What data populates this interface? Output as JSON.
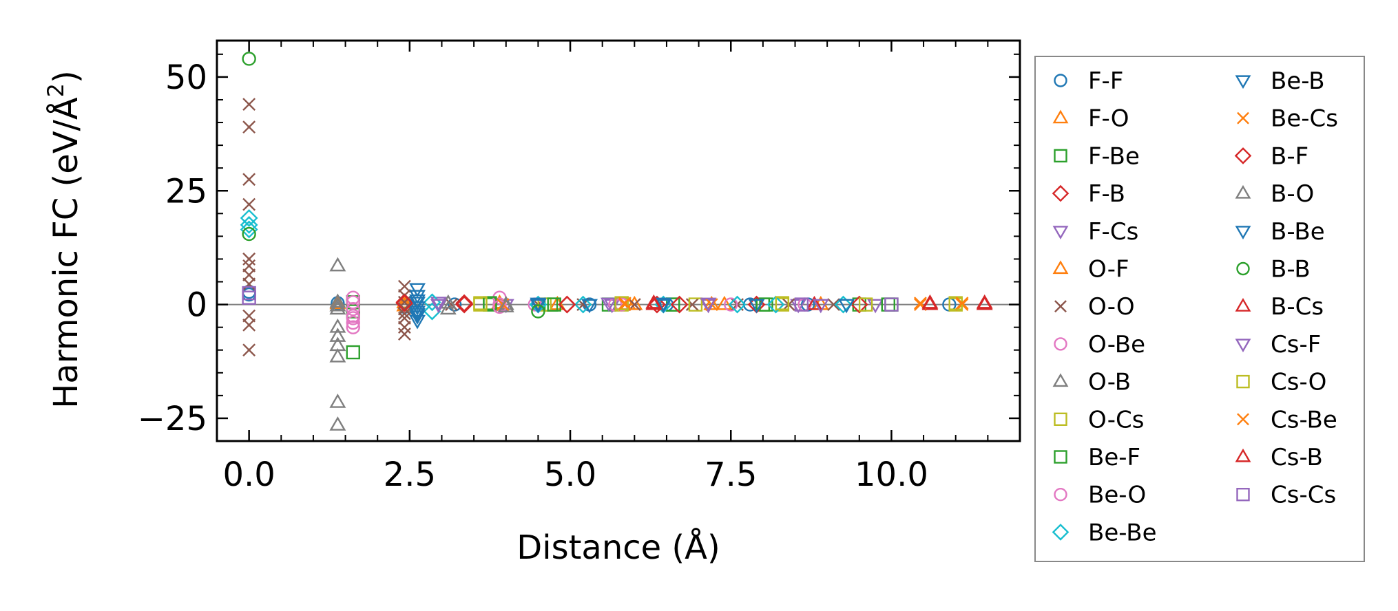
{
  "chart_data": {
    "type": "scatter",
    "xlabel": "Distance (Å)",
    "ylabel_prefix": "Harmonic FC (eV/Å",
    "ylabel_sup": "2",
    "ylabel_suffix": ")",
    "xlim": [
      -0.5,
      12.0
    ],
    "ylim": [
      -30,
      58
    ],
    "xticks": [
      0.0,
      2.5,
      5.0,
      7.5,
      10.0
    ],
    "xtick_labels": [
      "0.0",
      "2.5",
      "5.0",
      "7.5",
      "10.0"
    ],
    "yticks": [
      -25,
      0,
      25,
      50
    ],
    "ytick_labels": [
      "−25",
      "0",
      "25",
      "50"
    ],
    "zero_line": true,
    "grid": false,
    "legend_position": "outside-right",
    "series": [
      {
        "name": "F-F",
        "marker": "circle",
        "color": "#1f77b4",
        "points": [
          [
            0,
            2.8
          ],
          [
            0,
            2.2
          ],
          [
            1.38,
            0.3
          ],
          [
            2.42,
            -0.5
          ],
          [
            3.2,
            0
          ],
          [
            4.5,
            0
          ],
          [
            5.3,
            0
          ],
          [
            6.5,
            0
          ],
          [
            7.8,
            0
          ],
          [
            8.7,
            0
          ],
          [
            10.9,
            0
          ]
        ]
      },
      {
        "name": "F-O",
        "marker": "triangle-up",
        "color": "#ff7f0e",
        "points": [
          [
            1.38,
            0.2
          ],
          [
            2.42,
            0.4
          ],
          [
            3.9,
            0
          ],
          [
            4.8,
            0
          ],
          [
            6.0,
            0
          ],
          [
            7.2,
            0
          ],
          [
            8.9,
            0
          ]
        ]
      },
      {
        "name": "F-Be",
        "marker": "square",
        "color": "#2ca02c",
        "points": [
          [
            1.62,
            0.5
          ],
          [
            1.62,
            -1.5
          ],
          [
            3.75,
            0
          ],
          [
            4.7,
            0
          ],
          [
            5.6,
            0
          ],
          [
            6.6,
            0
          ],
          [
            8.0,
            0
          ],
          [
            9.5,
            0
          ],
          [
            10.0,
            0
          ]
        ]
      },
      {
        "name": "F-B",
        "marker": "diamond",
        "color": "#d62728",
        "points": [
          [
            2.42,
            0.5
          ],
          [
            3.35,
            0
          ],
          [
            4.95,
            0
          ],
          [
            6.35,
            0
          ],
          [
            7.9,
            0
          ],
          [
            9.5,
            0
          ]
        ]
      },
      {
        "name": "F-Cs",
        "marker": "triangle-down",
        "color": "#9467bd",
        "points": [
          [
            2.95,
            0.5
          ],
          [
            4.0,
            0
          ],
          [
            5.65,
            0
          ],
          [
            7.15,
            0
          ],
          [
            8.55,
            0
          ],
          [
            9.75,
            0
          ]
        ]
      },
      {
        "name": "O-F",
        "marker": "triangle-up",
        "color": "#ff7f0e",
        "points": [
          [
            2.42,
            -0.3
          ],
          [
            3.9,
            0.3
          ],
          [
            5.9,
            0
          ],
          [
            7.4,
            0
          ]
        ]
      },
      {
        "name": "O-O",
        "marker": "x",
        "color": "#8c564b",
        "points": [
          [
            0,
            44
          ],
          [
            0,
            39
          ],
          [
            0,
            27.5
          ],
          [
            0,
            22
          ],
          [
            0,
            10
          ],
          [
            0,
            8.5
          ],
          [
            0,
            6.5
          ],
          [
            0,
            4.5
          ],
          [
            0,
            -2.5
          ],
          [
            0,
            -4.5
          ],
          [
            0,
            -10
          ],
          [
            2.42,
            4
          ],
          [
            2.42,
            2
          ],
          [
            2.42,
            0.5
          ],
          [
            2.42,
            -1
          ],
          [
            2.42,
            -2
          ],
          [
            2.42,
            -3
          ],
          [
            2.42,
            -5
          ],
          [
            2.42,
            -6.5
          ],
          [
            3.15,
            0
          ],
          [
            3.95,
            0
          ],
          [
            4.5,
            0
          ],
          [
            5.2,
            0
          ],
          [
            6.0,
            0
          ],
          [
            6.9,
            0
          ],
          [
            7.6,
            0
          ],
          [
            8.4,
            0
          ],
          [
            9.1,
            0
          ]
        ]
      },
      {
        "name": "O-Be",
        "marker": "circle",
        "color": "#e377c2",
        "points": [
          [
            1.62,
            1.5
          ],
          [
            1.62,
            0.5
          ],
          [
            1.62,
            -1
          ],
          [
            1.62,
            -2.5
          ],
          [
            1.62,
            -4
          ],
          [
            1.62,
            -5
          ],
          [
            3.9,
            1.5
          ],
          [
            3.9,
            0
          ],
          [
            4.45,
            0
          ],
          [
            5.7,
            0
          ],
          [
            7.5,
            0
          ],
          [
            8.65,
            0
          ]
        ]
      },
      {
        "name": "O-B",
        "marker": "triangle-up",
        "color": "#7f7f7f",
        "points": [
          [
            1.38,
            8.5
          ],
          [
            1.38,
            0.5
          ],
          [
            1.38,
            -1
          ],
          [
            1.38,
            -5
          ],
          [
            1.38,
            -7
          ],
          [
            1.38,
            -9
          ],
          [
            1.38,
            -11.5
          ],
          [
            1.38,
            -21.5
          ],
          [
            1.38,
            -26.5
          ],
          [
            3.1,
            -1
          ],
          [
            4.0,
            0
          ]
        ]
      },
      {
        "name": "O-Cs",
        "marker": "square",
        "color": "#bcbd22",
        "points": [
          [
            3.6,
            0
          ],
          [
            4.6,
            0
          ],
          [
            5.8,
            0
          ],
          [
            6.95,
            0
          ],
          [
            8.3,
            0
          ],
          [
            9.6,
            0
          ],
          [
            11.0,
            0
          ]
        ]
      },
      {
        "name": "Be-F",
        "marker": "square",
        "color": "#2ca02c",
        "points": [
          [
            1.62,
            -10.5
          ],
          [
            3.75,
            0.3
          ],
          [
            4.75,
            0
          ],
          [
            6.6,
            0
          ],
          [
            8.05,
            0
          ],
          [
            9.95,
            0
          ]
        ]
      },
      {
        "name": "Be-O",
        "marker": "circle",
        "color": "#e377c2",
        "points": [
          [
            1.62,
            -3
          ],
          [
            3.9,
            -0.5
          ],
          [
            5.8,
            0
          ]
        ]
      },
      {
        "name": "Be-Be",
        "marker": "diamond",
        "color": "#17becf",
        "points": [
          [
            0,
            19
          ],
          [
            0,
            17.5
          ],
          [
            0,
            16.5
          ],
          [
            2.85,
            0.5
          ],
          [
            2.85,
            -1.5
          ],
          [
            4.5,
            0
          ],
          [
            5.2,
            0
          ],
          [
            6.45,
            0
          ],
          [
            7.6,
            0
          ],
          [
            8.2,
            0
          ],
          [
            9.25,
            0
          ]
        ]
      },
      {
        "name": "Be-B",
        "marker": "triangle-down",
        "color": "#1f77b4",
        "points": [
          [
            2.62,
            3.5
          ],
          [
            2.62,
            2
          ],
          [
            2.62,
            1
          ],
          [
            2.62,
            -0.5
          ],
          [
            2.62,
            -1.5
          ],
          [
            2.62,
            -2.5
          ],
          [
            2.62,
            -3.5
          ],
          [
            4.5,
            0
          ],
          [
            5.3,
            0
          ],
          [
            6.45,
            0
          ],
          [
            7.9,
            0
          ],
          [
            9.3,
            0
          ]
        ]
      },
      {
        "name": "Be-Cs",
        "marker": "x",
        "color": "#ff7f0e",
        "points": [
          [
            3.95,
            0
          ],
          [
            5.85,
            0
          ],
          [
            7.2,
            0
          ],
          [
            10.45,
            0
          ],
          [
            11.1,
            0
          ]
        ]
      },
      {
        "name": "B-F",
        "marker": "diamond",
        "color": "#d62728",
        "points": [
          [
            2.42,
            0.3
          ],
          [
            3.35,
            0.3
          ],
          [
            4.95,
            0
          ],
          [
            6.7,
            0
          ]
        ]
      },
      {
        "name": "B-O",
        "marker": "triangle-up",
        "color": "#7f7f7f",
        "points": [
          [
            1.38,
            -0.3
          ],
          [
            3.1,
            0.3
          ],
          [
            4.0,
            -0.5
          ]
        ]
      },
      {
        "name": "B-Be",
        "marker": "triangle-down",
        "color": "#1f77b4",
        "points": [
          [
            2.62,
            0.5
          ],
          [
            2.62,
            -2
          ],
          [
            4.5,
            0.3
          ],
          [
            6.45,
            0.3
          ]
        ]
      },
      {
        "name": "B-B",
        "marker": "circle",
        "color": "#2ca02c",
        "points": [
          [
            0,
            54
          ],
          [
            0,
            15.5
          ],
          [
            4.5,
            -1.5
          ]
        ]
      },
      {
        "name": "B-Cs",
        "marker": "triangle-up",
        "color": "#d62728",
        "points": [
          [
            6.3,
            0
          ],
          [
            8.8,
            0
          ],
          [
            10.6,
            0
          ],
          [
            11.45,
            0
          ]
        ]
      },
      {
        "name": "Cs-F",
        "marker": "triangle-down",
        "color": "#9467bd",
        "points": [
          [
            2.95,
            0
          ],
          [
            5.6,
            0.3
          ],
          [
            7.15,
            0.3
          ],
          [
            8.9,
            0
          ]
        ]
      },
      {
        "name": "Cs-O",
        "marker": "square",
        "color": "#bcbd22",
        "points": [
          [
            3.6,
            0.3
          ],
          [
            5.8,
            0.3
          ],
          [
            8.3,
            0.3
          ],
          [
            11.0,
            0.3
          ]
        ]
      },
      {
        "name": "Cs-Be",
        "marker": "x",
        "color": "#ff7f0e",
        "points": [
          [
            5.85,
            0.3
          ],
          [
            10.45,
            0.3
          ],
          [
            11.1,
            0.3
          ]
        ]
      },
      {
        "name": "Cs-B",
        "marker": "triangle-up",
        "color": "#d62728",
        "points": [
          [
            6.3,
            0.3
          ],
          [
            10.6,
            0.3
          ],
          [
            11.45,
            0.3
          ]
        ]
      },
      {
        "name": "Cs-Cs",
        "marker": "square",
        "color": "#9467bd",
        "points": [
          [
            0,
            2.5
          ],
          [
            0,
            1.5
          ],
          [
            8.6,
            0
          ],
          [
            10.0,
            0
          ]
        ]
      }
    ]
  }
}
